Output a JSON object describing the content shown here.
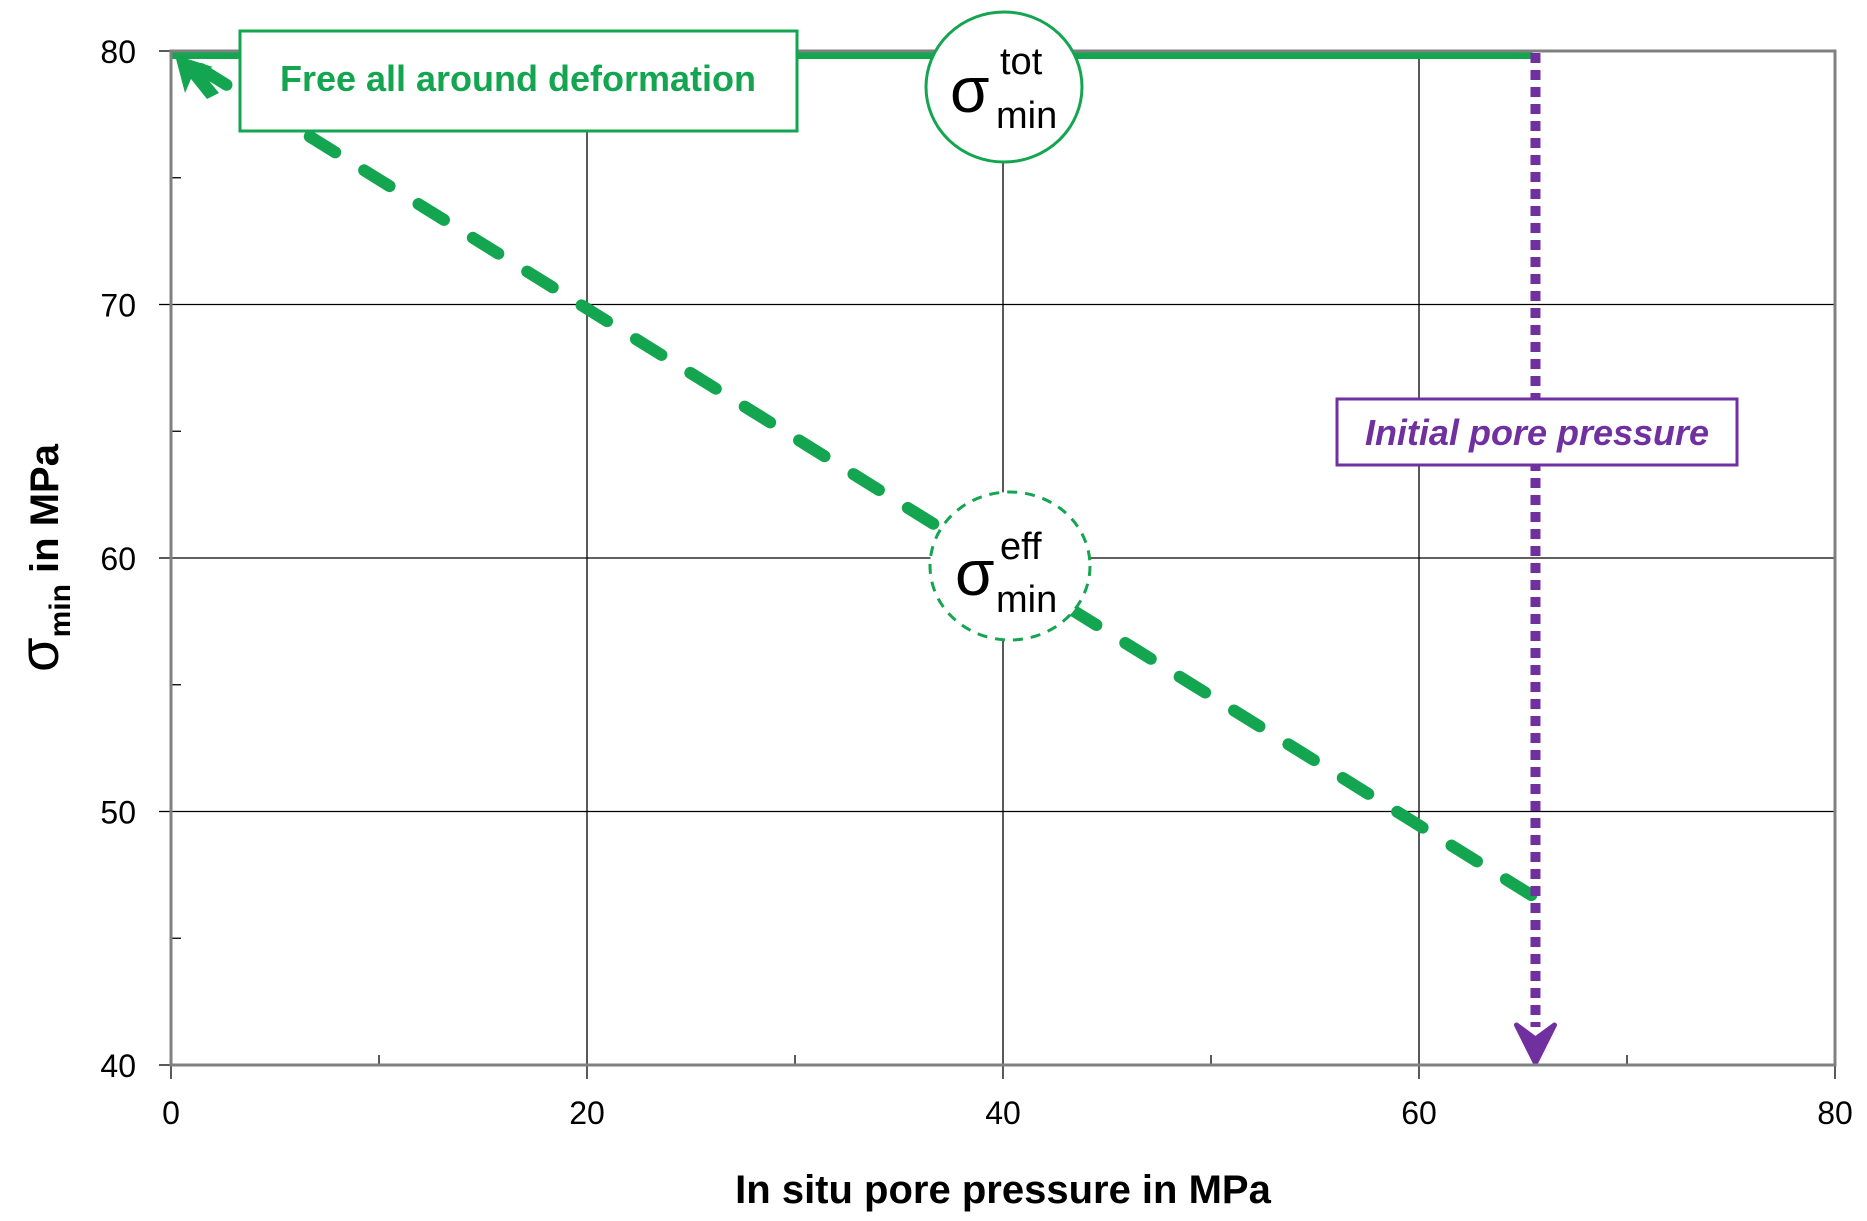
{
  "chart_data": {
    "type": "line",
    "title": "",
    "xlabel": "In situ pore pressure in MPa",
    "ylabel": {
      "symbol": "σ",
      "subscript": "min",
      "suffix": " in MPa"
    },
    "xlim": [
      0,
      80
    ],
    "ylim": [
      40,
      80
    ],
    "x_ticks": [
      0,
      20,
      40,
      60,
      80
    ],
    "y_ticks": [
      40,
      50,
      60,
      70,
      80
    ],
    "x_tick_labels": [
      "0",
      "20",
      "40",
      "60",
      "80"
    ],
    "y_tick_labels": [
      "40",
      "50",
      "60",
      "70",
      "80"
    ],
    "x_minor_ticks": [
      10,
      30,
      50,
      70
    ],
    "y_minor_ticks": [
      45,
      55,
      65,
      75
    ],
    "grid": true,
    "series": [
      {
        "name": "sigma_min_tot",
        "label": {
          "symbol": "σ",
          "superscript": "tot",
          "subscript": "min"
        },
        "style": "solid",
        "color": "#13A54F",
        "x": [
          0,
          65.6
        ],
        "y": [
          80,
          80
        ]
      },
      {
        "name": "sigma_min_eff",
        "label": {
          "symbol": "σ",
          "superscript": "eff",
          "subscript": "min"
        },
        "style": "dashed",
        "color": "#13A54F",
        "x": [
          0,
          65.6
        ],
        "y": [
          80,
          46.6
        ]
      }
    ],
    "vertical_marker": {
      "x": 65.6,
      "y_from": 80,
      "y_to": 40,
      "style": "dotted-arrow",
      "color": "#7030A0"
    },
    "annotations": [
      {
        "text": "Free all around deformation",
        "color": "#13A54F",
        "points_to": [
          0,
          80
        ]
      },
      {
        "text": "Initial pore pressure",
        "color": "#7030A0"
      }
    ]
  }
}
